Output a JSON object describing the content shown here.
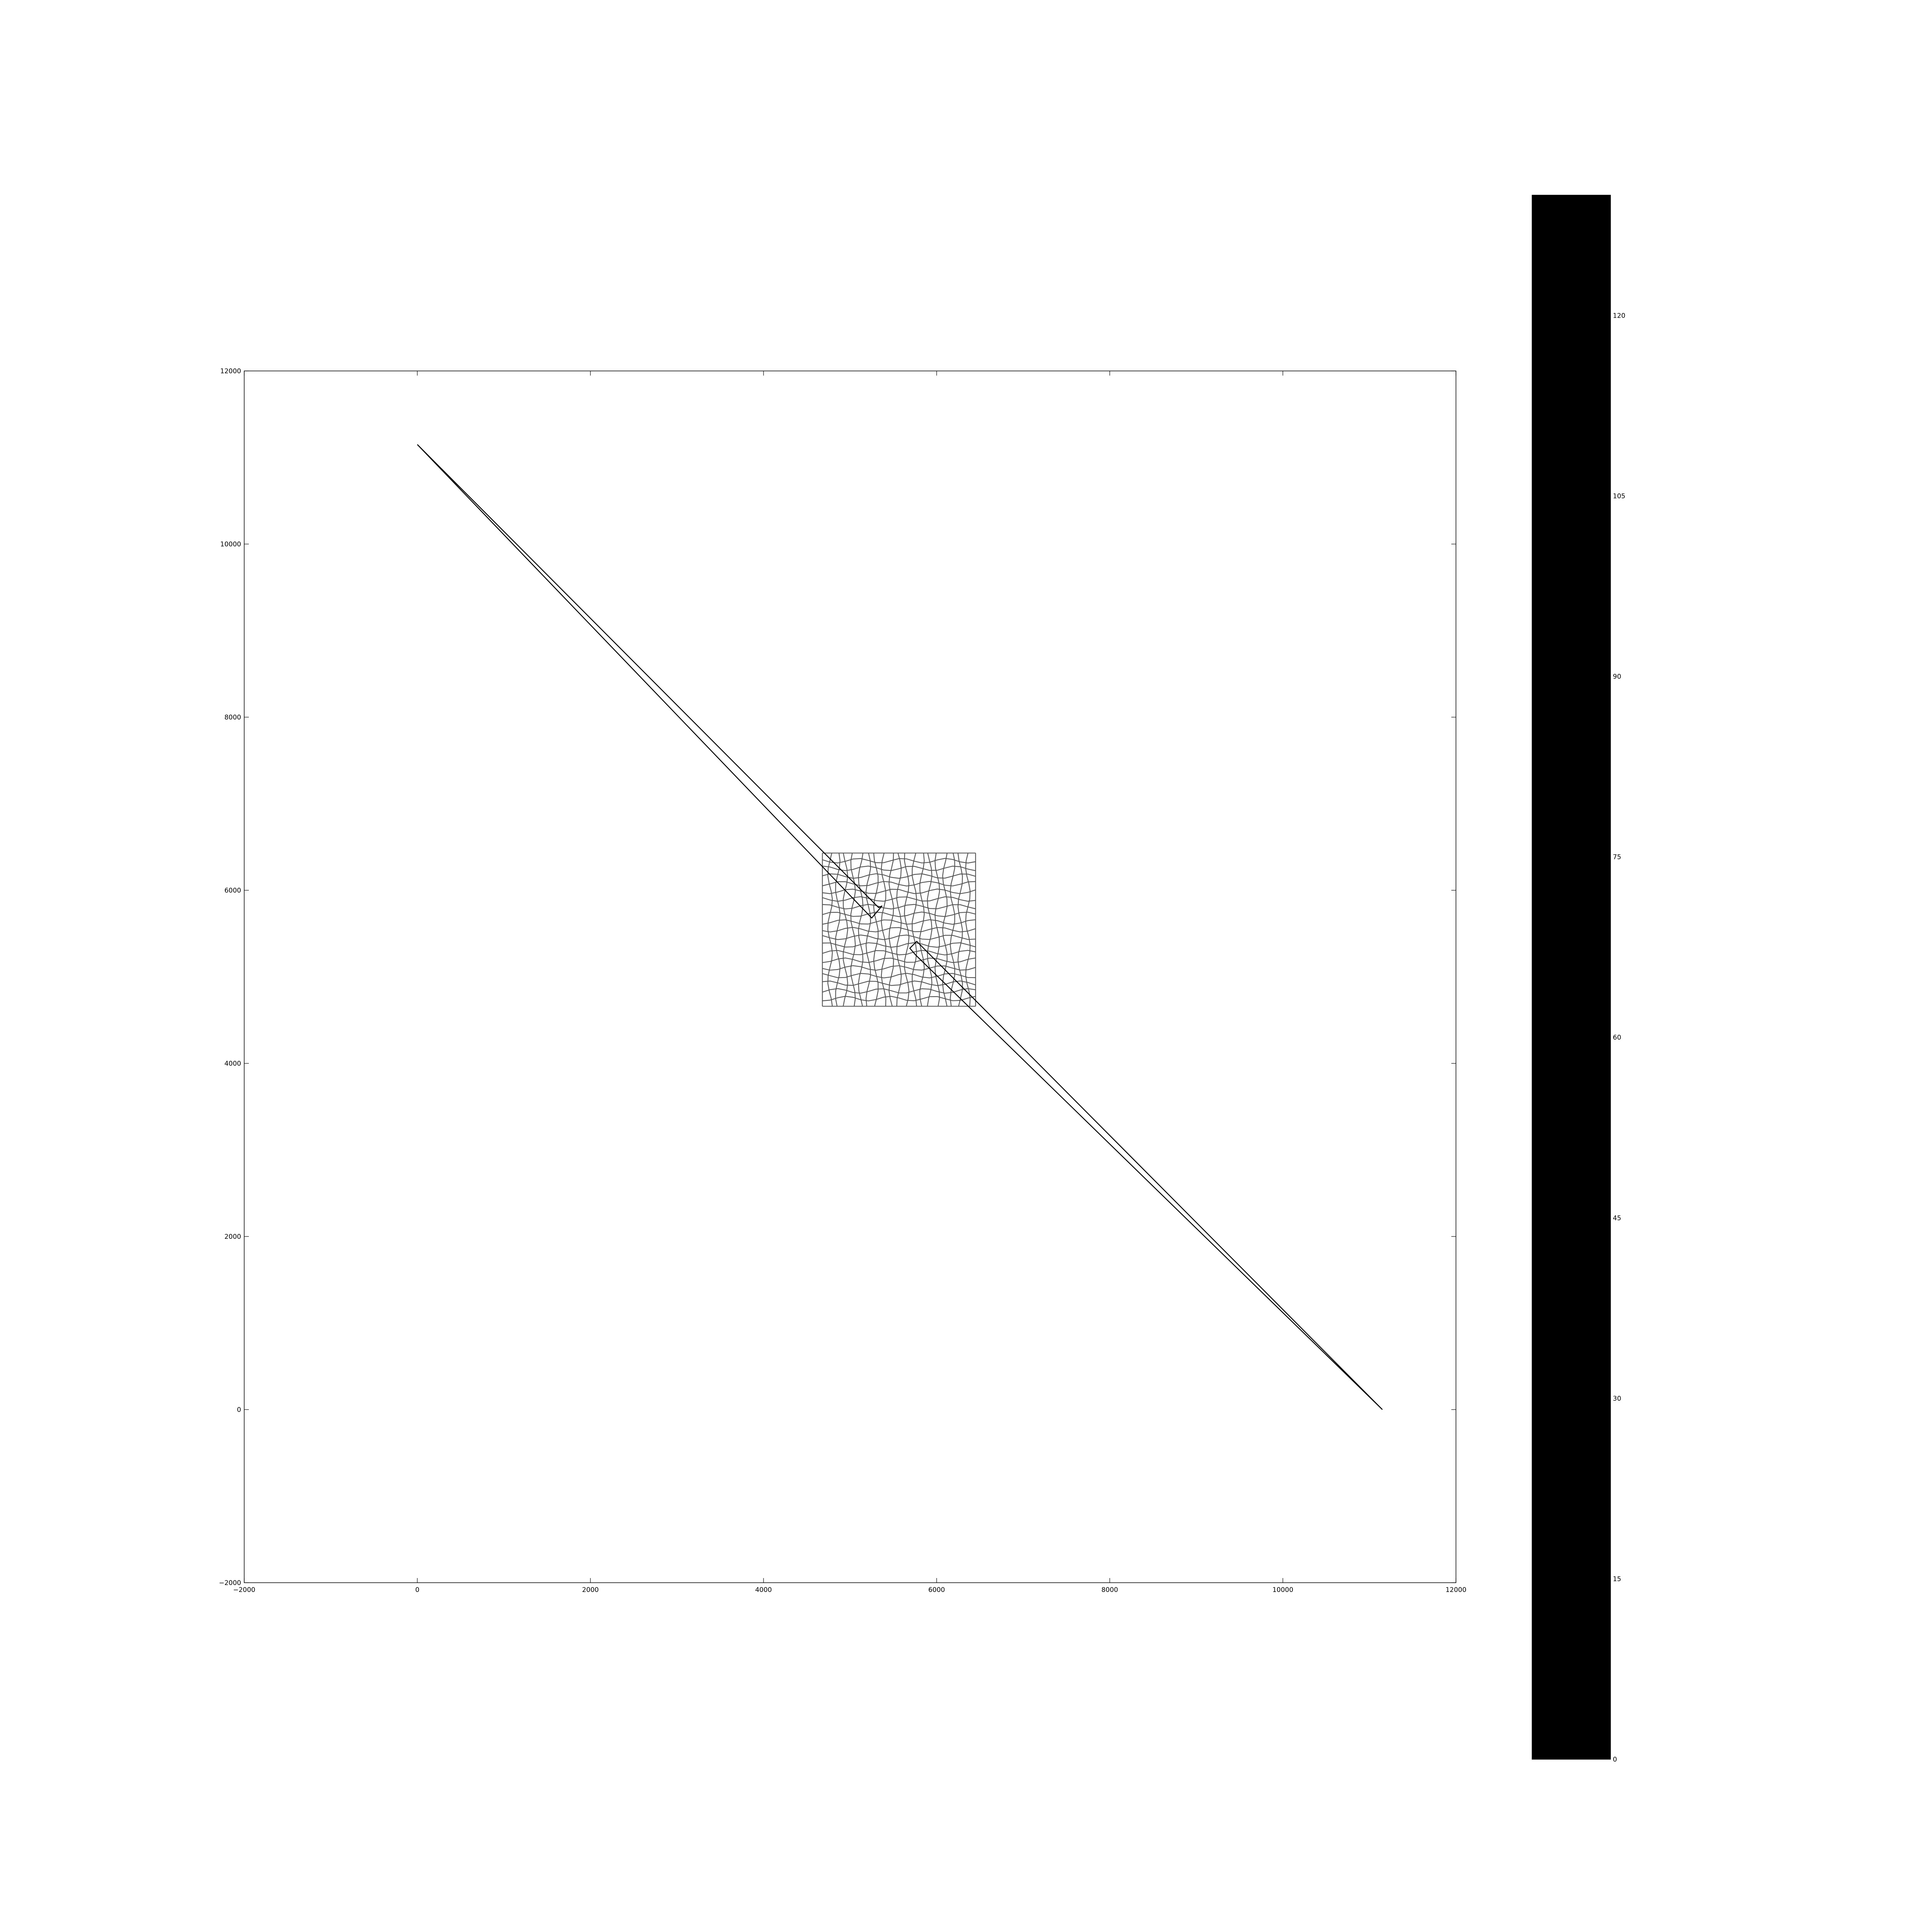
{
  "chart_data": [
    {
      "type": "line",
      "title": "",
      "xlabel": "",
      "ylabel": "",
      "xlim": [
        -2000,
        12000
      ],
      "ylim": [
        -2000,
        12000
      ],
      "xticks": [
        -2000,
        0,
        2000,
        4000,
        6000,
        8000,
        10000,
        12000
      ],
      "yticks": [
        -2000,
        0,
        2000,
        4000,
        6000,
        8000,
        10000,
        12000
      ],
      "xtick_labels": [
        "−2000",
        "0",
        "2000",
        "4000",
        "6000",
        "8000",
        "10000",
        "12000"
      ],
      "ytick_labels": [
        "−2000",
        "0",
        "2000",
        "4000",
        "6000",
        "8000",
        "10000",
        "12000"
      ],
      "grid": false,
      "legend": "none",
      "series": [
        {
          "x": [
            0,
            5330,
            5370,
            5250,
            0
          ],
          "y": [
            11150,
            5800,
            5820,
            5680,
            11150
          ]
        },
        {
          "x": [
            5770,
            5690,
            5760,
            11150,
            5770
          ],
          "y": [
            5410,
            5330,
            5250,
            0,
            5410
          ]
        }
      ],
      "mesh": {
        "x_range": [
          4680,
          6450
        ],
        "y_range": [
          4660,
          6430
        ],
        "divisions": 20
      }
    },
    {
      "type": "heatmap",
      "role": "colorbar",
      "title": "",
      "range": [
        0,
        130
      ],
      "ticks": [
        0,
        15,
        30,
        45,
        60,
        75,
        90,
        105,
        120
      ],
      "tick_labels": [
        "0",
        "15",
        "30",
        "45",
        "60",
        "75",
        "90",
        "105",
        "120"
      ],
      "fill_color": "#000000"
    }
  ],
  "colors": {
    "line": "#000000",
    "mesh": "#555555",
    "colorbar_fill": "#000000",
    "background": "#ffffff"
  }
}
